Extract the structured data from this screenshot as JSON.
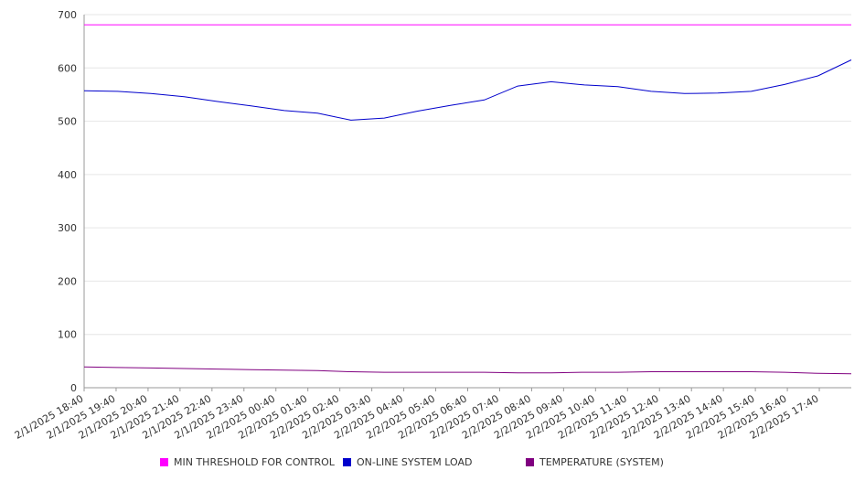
{
  "chart_data": {
    "type": "line",
    "title": "",
    "xlabel": "",
    "ylabel": "",
    "ylim": [
      0,
      700
    ],
    "y_ticks": [
      0,
      100,
      200,
      300,
      400,
      500,
      600,
      700
    ],
    "x_tick_labels": [
      "2/1/2025 18:40",
      "2/1/2025 19:40",
      "2/1/2025 20:40",
      "2/1/2025 21:40",
      "2/1/2025 22:40",
      "2/1/2025 23:40",
      "2/2/2025 00:40",
      "2/2/2025 01:40",
      "2/2/2025 02:40",
      "2/2/2025 03:40",
      "2/2/2025 04:40",
      "2/2/2025 05:40",
      "2/2/2025 06:40",
      "2/2/2025 07:40",
      "2/2/2025 08:40",
      "2/2/2025 09:40",
      "2/2/2025 10:40",
      "2/2/2025 11:40",
      "2/2/2025 12:40",
      "2/2/2025 13:40",
      "2/2/2025 14:40",
      "2/2/2025 15:40",
      "2/2/2025 16:40",
      "2/2/2025 17:40"
    ],
    "grid": true,
    "legend_position": "bottom",
    "series": [
      {
        "name": "MIN THRESHOLD FOR CONTROL",
        "color": "#ff00ff",
        "values": [
          681,
          681,
          681,
          681,
          681,
          681,
          681,
          681,
          681,
          681,
          681,
          681,
          681,
          681,
          681,
          681,
          681,
          681,
          681,
          681,
          681,
          681,
          681,
          681
        ]
      },
      {
        "name": "ON-LINE SYSTEM LOAD",
        "color": "#0000cc",
        "values": [
          557,
          556,
          552,
          546,
          537,
          529,
          520,
          515,
          502,
          506,
          519,
          530,
          540,
          566,
          574,
          568,
          565,
          556,
          552,
          553,
          556,
          569,
          585,
          615
        ]
      },
      {
        "name": "TEMPERATURE (SYSTEM)",
        "color": "#800080",
        "values": [
          39,
          38,
          37,
          36,
          35,
          34,
          33,
          32,
          30,
          29,
          29,
          29,
          29,
          28,
          28,
          29,
          29,
          30,
          30,
          30,
          30,
          29,
          27,
          26
        ]
      }
    ]
  }
}
